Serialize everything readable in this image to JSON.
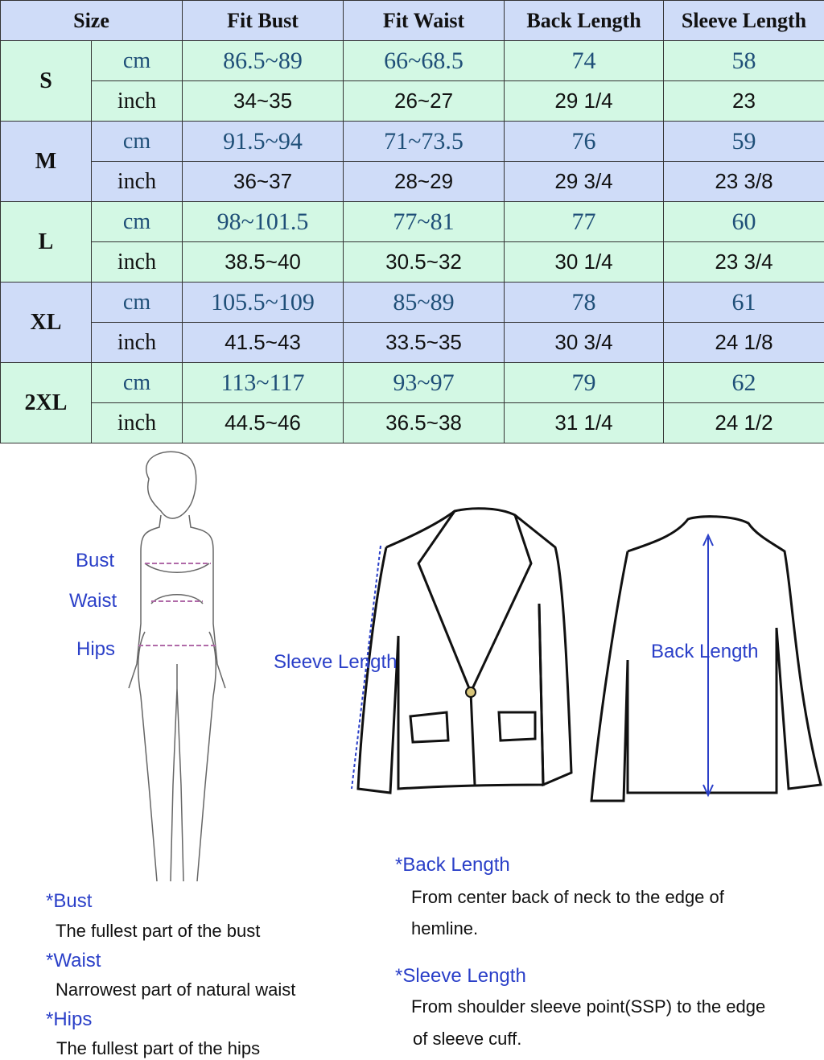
{
  "table": {
    "headers": [
      "Size",
      "Fit Bust",
      "Fit Waist",
      "Back Length",
      "Sleeve Length"
    ],
    "rows": [
      {
        "size": "S",
        "cm_label": "cm",
        "inch_label": "inch",
        "cm": [
          "86.5~89",
          "66~68.5",
          "74",
          "58"
        ],
        "inch": [
          "34~35",
          "26~27",
          "29 1/4",
          "23"
        ]
      },
      {
        "size": "M",
        "cm_label": "cm",
        "inch_label": "inch",
        "cm": [
          "91.5~94",
          "71~73.5",
          "76",
          "59"
        ],
        "inch": [
          "36~37",
          "28~29",
          "29 3/4",
          "23 3/8"
        ]
      },
      {
        "size": "L",
        "cm_label": "cm",
        "inch_label": "inch",
        "cm": [
          "98~101.5",
          "77~81",
          "77",
          "60"
        ],
        "inch": [
          "38.5~40",
          "30.5~32",
          "30 1/4",
          "23 3/4"
        ]
      },
      {
        "size": "XL",
        "cm_label": "cm",
        "inch_label": "inch",
        "cm": [
          "105.5~109",
          "85~89",
          "78",
          "61"
        ],
        "inch": [
          "41.5~43",
          "33.5~35",
          "30 3/4",
          "24 1/8"
        ]
      },
      {
        "size": "2XL",
        "cm_label": "cm",
        "inch_label": "inch",
        "cm": [
          "113~117",
          "93~97",
          "79",
          "62"
        ],
        "inch": [
          "44.5~46",
          "36.5~38",
          "31 1/4",
          "24 1/2"
        ]
      }
    ],
    "colors": {
      "green": "#d3f8e4",
      "blue": "#cfdcf8",
      "cm_text": "#1f4f78"
    }
  },
  "figure_labels": {
    "bust": "Bust",
    "waist": "Waist",
    "hips": "Hips",
    "sleeve": "Sleeve Length",
    "back": "Back Length"
  },
  "notes": {
    "bust_title": "*Bust",
    "bust_text": "The fullest part of the bust",
    "waist_title": "*Waist",
    "waist_text": "Narrowest part of natural waist",
    "hips_title": "*Hips",
    "hips_text": "The fullest part of the hips",
    "back_title": "*Back Length",
    "back_text1": "From center back of neck to the edge of",
    "back_text2": "hemline.",
    "sleeve_title": "*Sleeve Length",
    "sleeve_text1": "From shoulder sleeve point(SSP) to the edge",
    "sleeve_text2": "of sleeve cuff."
  },
  "label_color": "#2a3fc8"
}
